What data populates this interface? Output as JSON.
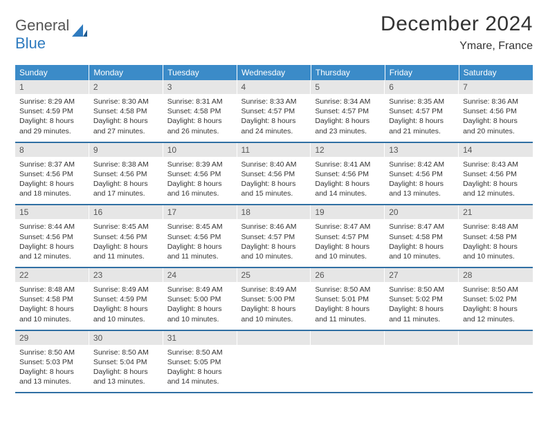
{
  "logo": {
    "text1": "General",
    "text2": "Blue"
  },
  "title": "December 2024",
  "location": "Ymare, France",
  "colors": {
    "header_bg": "#3b8bc8",
    "header_text": "#ffffff",
    "daynum_bg": "#e6e6e6",
    "week_border": "#2f6fa3",
    "brand_blue": "#2f7bbf",
    "text": "#333333"
  },
  "fonts": {
    "title_size": 30,
    "location_size": 16,
    "dow_size": 12,
    "body_size": 10.5
  },
  "days_of_week": [
    "Sunday",
    "Monday",
    "Tuesday",
    "Wednesday",
    "Thursday",
    "Friday",
    "Saturday"
  ],
  "weeks": [
    [
      {
        "n": "1",
        "sr": "8:29 AM",
        "ss": "4:59 PM",
        "dl": "8 hours and 29 minutes."
      },
      {
        "n": "2",
        "sr": "8:30 AM",
        "ss": "4:58 PM",
        "dl": "8 hours and 27 minutes."
      },
      {
        "n": "3",
        "sr": "8:31 AM",
        "ss": "4:58 PM",
        "dl": "8 hours and 26 minutes."
      },
      {
        "n": "4",
        "sr": "8:33 AM",
        "ss": "4:57 PM",
        "dl": "8 hours and 24 minutes."
      },
      {
        "n": "5",
        "sr": "8:34 AM",
        "ss": "4:57 PM",
        "dl": "8 hours and 23 minutes."
      },
      {
        "n": "6",
        "sr": "8:35 AM",
        "ss": "4:57 PM",
        "dl": "8 hours and 21 minutes."
      },
      {
        "n": "7",
        "sr": "8:36 AM",
        "ss": "4:56 PM",
        "dl": "8 hours and 20 minutes."
      }
    ],
    [
      {
        "n": "8",
        "sr": "8:37 AM",
        "ss": "4:56 PM",
        "dl": "8 hours and 18 minutes."
      },
      {
        "n": "9",
        "sr": "8:38 AM",
        "ss": "4:56 PM",
        "dl": "8 hours and 17 minutes."
      },
      {
        "n": "10",
        "sr": "8:39 AM",
        "ss": "4:56 PM",
        "dl": "8 hours and 16 minutes."
      },
      {
        "n": "11",
        "sr": "8:40 AM",
        "ss": "4:56 PM",
        "dl": "8 hours and 15 minutes."
      },
      {
        "n": "12",
        "sr": "8:41 AM",
        "ss": "4:56 PM",
        "dl": "8 hours and 14 minutes."
      },
      {
        "n": "13",
        "sr": "8:42 AM",
        "ss": "4:56 PM",
        "dl": "8 hours and 13 minutes."
      },
      {
        "n": "14",
        "sr": "8:43 AM",
        "ss": "4:56 PM",
        "dl": "8 hours and 12 minutes."
      }
    ],
    [
      {
        "n": "15",
        "sr": "8:44 AM",
        "ss": "4:56 PM",
        "dl": "8 hours and 12 minutes."
      },
      {
        "n": "16",
        "sr": "8:45 AM",
        "ss": "4:56 PM",
        "dl": "8 hours and 11 minutes."
      },
      {
        "n": "17",
        "sr": "8:45 AM",
        "ss": "4:56 PM",
        "dl": "8 hours and 11 minutes."
      },
      {
        "n": "18",
        "sr": "8:46 AM",
        "ss": "4:57 PM",
        "dl": "8 hours and 10 minutes."
      },
      {
        "n": "19",
        "sr": "8:47 AM",
        "ss": "4:57 PM",
        "dl": "8 hours and 10 minutes."
      },
      {
        "n": "20",
        "sr": "8:47 AM",
        "ss": "4:58 PM",
        "dl": "8 hours and 10 minutes."
      },
      {
        "n": "21",
        "sr": "8:48 AM",
        "ss": "4:58 PM",
        "dl": "8 hours and 10 minutes."
      }
    ],
    [
      {
        "n": "22",
        "sr": "8:48 AM",
        "ss": "4:58 PM",
        "dl": "8 hours and 10 minutes."
      },
      {
        "n": "23",
        "sr": "8:49 AM",
        "ss": "4:59 PM",
        "dl": "8 hours and 10 minutes."
      },
      {
        "n": "24",
        "sr": "8:49 AM",
        "ss": "5:00 PM",
        "dl": "8 hours and 10 minutes."
      },
      {
        "n": "25",
        "sr": "8:49 AM",
        "ss": "5:00 PM",
        "dl": "8 hours and 10 minutes."
      },
      {
        "n": "26",
        "sr": "8:50 AM",
        "ss": "5:01 PM",
        "dl": "8 hours and 11 minutes."
      },
      {
        "n": "27",
        "sr": "8:50 AM",
        "ss": "5:02 PM",
        "dl": "8 hours and 11 minutes."
      },
      {
        "n": "28",
        "sr": "8:50 AM",
        "ss": "5:02 PM",
        "dl": "8 hours and 12 minutes."
      }
    ],
    [
      {
        "n": "29",
        "sr": "8:50 AM",
        "ss": "5:03 PM",
        "dl": "8 hours and 13 minutes."
      },
      {
        "n": "30",
        "sr": "8:50 AM",
        "ss": "5:04 PM",
        "dl": "8 hours and 13 minutes."
      },
      {
        "n": "31",
        "sr": "8:50 AM",
        "ss": "5:05 PM",
        "dl": "8 hours and 14 minutes."
      },
      null,
      null,
      null,
      null
    ]
  ],
  "labels": {
    "sunrise": "Sunrise:",
    "sunset": "Sunset:",
    "daylight": "Daylight:"
  }
}
